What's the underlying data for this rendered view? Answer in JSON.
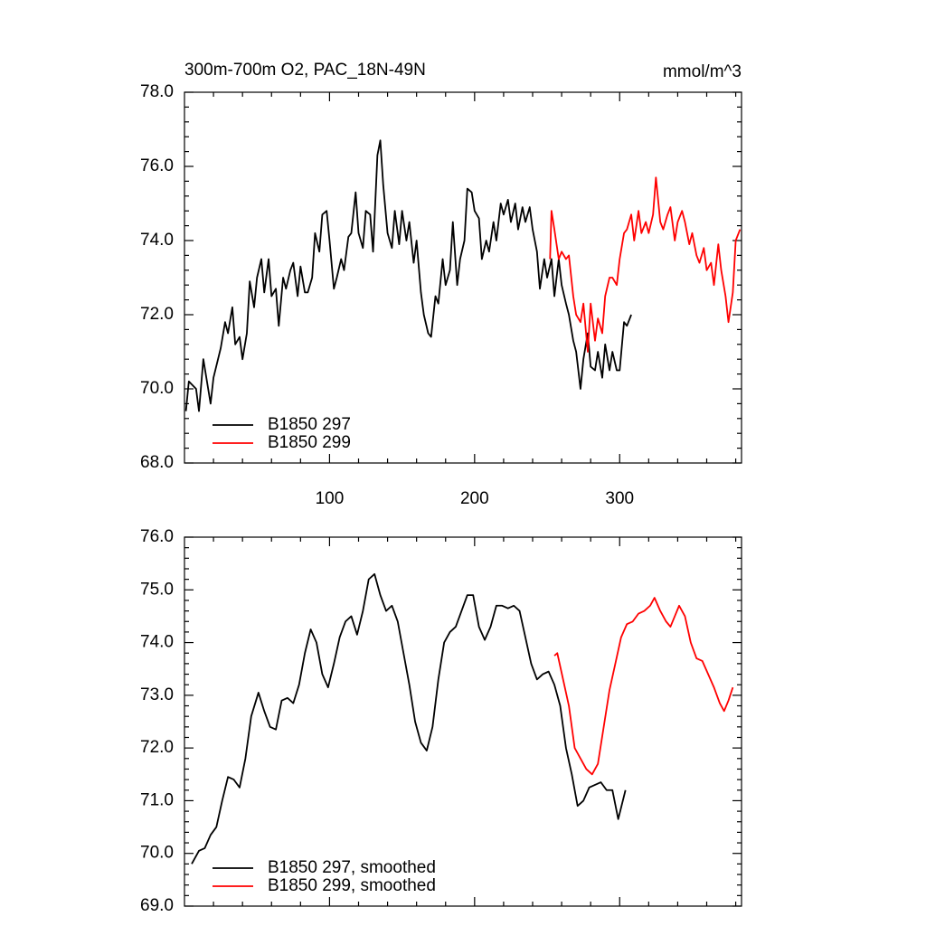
{
  "chart_data": [
    {
      "type": "line",
      "title": "300m-700m O2, PAC_18N-49N",
      "units_label": "mmol/m^3",
      "xlim": [
        0,
        384
      ],
      "xticks": [
        100,
        200,
        300
      ],
      "ylim": [
        68,
        78
      ],
      "yticks": [
        {
          "value": 68,
          "label": "68.0"
        },
        {
          "value": 70,
          "label": "70.0"
        },
        {
          "value": 72,
          "label": "72.0"
        },
        {
          "value": 74,
          "label": "74.0"
        },
        {
          "value": 76,
          "label": "76.0"
        },
        {
          "value": 78,
          "label": "78.0"
        }
      ],
      "legend": "lower-left",
      "series": [
        {
          "name": "B1850 297",
          "color": "#000000",
          "x": [
            1,
            3,
            8,
            10,
            13,
            18,
            20,
            25,
            28,
            30,
            33,
            35,
            38,
            40,
            43,
            45,
            48,
            50,
            53,
            55,
            58,
            60,
            63,
            65,
            68,
            70,
            73,
            75,
            78,
            80,
            83,
            85,
            88,
            90,
            93,
            95,
            98,
            100,
            103,
            105,
            108,
            110,
            113,
            115,
            118,
            120,
            123,
            125,
            128,
            130,
            133,
            135,
            137,
            140,
            143,
            145,
            148,
            150,
            153,
            155,
            158,
            160,
            163,
            165,
            168,
            170,
            173,
            175,
            178,
            180,
            183,
            185,
            188,
            190,
            193,
            195,
            198,
            200,
            203,
            205,
            208,
            210,
            213,
            215,
            218,
            220,
            223,
            225,
            228,
            230,
            233,
            235,
            238,
            240,
            243,
            245,
            248,
            250,
            253,
            255,
            258,
            260,
            263,
            265,
            268,
            270,
            273,
            275,
            278,
            280,
            283,
            285,
            288,
            290,
            293,
            295,
            298,
            300,
            303,
            305,
            308
          ],
          "values": [
            69.4,
            70.2,
            70.0,
            69.4,
            70.8,
            69.6,
            70.3,
            71.1,
            71.8,
            71.5,
            72.2,
            71.2,
            71.4,
            70.8,
            71.5,
            72.9,
            72.2,
            73.0,
            73.5,
            72.6,
            73.5,
            72.5,
            72.7,
            71.7,
            73.0,
            72.7,
            73.2,
            73.4,
            72.5,
            73.3,
            72.6,
            72.6,
            73.0,
            74.2,
            73.7,
            74.7,
            74.8,
            74.0,
            72.7,
            73.0,
            73.5,
            73.2,
            74.1,
            74.2,
            75.3,
            74.2,
            73.8,
            74.8,
            74.7,
            73.7,
            76.3,
            76.7,
            75.5,
            74.2,
            73.8,
            74.8,
            73.9,
            74.8,
            74.0,
            74.5,
            73.4,
            74.0,
            72.6,
            72.0,
            71.5,
            71.4,
            72.5,
            72.3,
            73.5,
            72.8,
            73.2,
            74.5,
            72.8,
            73.5,
            74.0,
            75.4,
            75.3,
            74.8,
            74.6,
            73.5,
            74.0,
            73.7,
            74.5,
            74.0,
            75.0,
            74.7,
            75.1,
            74.5,
            75.0,
            74.3,
            74.9,
            74.5,
            74.9,
            74.3,
            73.7,
            72.7,
            73.5,
            73.0,
            73.5,
            72.5,
            73.5,
            72.8,
            72.3,
            72.0,
            71.3,
            71.0,
            70.0,
            70.8,
            71.5,
            70.6,
            70.5,
            71.0,
            70.3,
            71.2,
            70.5,
            71.0,
            70.5,
            70.5,
            71.8,
            71.7,
            72.0
          ]
        },
        {
          "name": "B1850 299",
          "color": "#ff0000",
          "x": [
            252,
            253,
            255,
            258,
            260,
            263,
            265,
            268,
            270,
            273,
            275,
            278,
            280,
            283,
            285,
            288,
            290,
            293,
            295,
            298,
            300,
            303,
            305,
            308,
            310,
            313,
            315,
            318,
            320,
            323,
            325,
            328,
            330,
            333,
            335,
            338,
            340,
            343,
            345,
            348,
            350,
            353,
            355,
            358,
            360,
            363,
            365,
            368,
            370,
            373,
            375,
            378,
            380,
            383
          ],
          "values": [
            73.5,
            74.8,
            74.3,
            73.5,
            73.7,
            73.5,
            73.6,
            72.5,
            72.0,
            71.8,
            72.3,
            71.0,
            72.3,
            71.3,
            71.9,
            71.5,
            72.5,
            73.0,
            73.0,
            72.8,
            73.5,
            74.2,
            74.3,
            74.7,
            74.0,
            74.8,
            74.2,
            74.5,
            74.2,
            74.7,
            75.7,
            74.5,
            74.3,
            74.7,
            74.9,
            74.0,
            74.5,
            74.8,
            74.5,
            73.9,
            74.2,
            73.6,
            73.4,
            73.8,
            73.2,
            73.4,
            72.8,
            73.9,
            73.2,
            72.5,
            71.8,
            72.6,
            74.0,
            74.3
          ]
        }
      ]
    },
    {
      "type": "line",
      "xlim": [
        0,
        384
      ],
      "xticks": [
        100,
        200,
        300
      ],
      "ylim": [
        69,
        76
      ],
      "yticks": [
        {
          "value": 69,
          "label": "69.0"
        },
        {
          "value": 70,
          "label": "70.0"
        },
        {
          "value": 71,
          "label": "71.0"
        },
        {
          "value": 72,
          "label": "72.0"
        },
        {
          "value": 73,
          "label": "73.0"
        },
        {
          "value": 74,
          "label": "74.0"
        },
        {
          "value": 75,
          "label": "75.0"
        },
        {
          "value": 76,
          "label": "76.0"
        }
      ],
      "legend": "lower-left",
      "series": [
        {
          "name": "B1850 297, smoothed",
          "color": "#000000",
          "x": [
            5,
            10,
            14,
            18,
            22,
            26,
            30,
            34,
            38,
            42,
            46,
            51,
            55,
            59,
            63,
            67,
            71,
            75,
            79,
            83,
            87,
            91,
            95,
            99,
            103,
            107,
            111,
            115,
            119,
            123,
            127,
            131,
            135,
            139,
            143,
            147,
            151,
            155,
            159,
            163,
            167,
            171,
            175,
            179,
            183,
            187,
            191,
            195,
            199,
            203,
            207,
            211,
            215,
            219,
            223,
            227,
            231,
            235,
            239,
            243,
            247,
            251,
            255,
            259,
            263,
            267,
            271,
            275,
            279,
            283,
            287,
            291,
            295,
            299,
            304
          ],
          "values": [
            69.8,
            70.05,
            70.1,
            70.35,
            70.5,
            71.0,
            71.45,
            71.4,
            71.25,
            71.8,
            72.6,
            73.05,
            72.7,
            72.4,
            72.35,
            72.9,
            72.95,
            72.85,
            73.2,
            73.8,
            74.25,
            74.0,
            73.4,
            73.15,
            73.6,
            74.1,
            74.4,
            74.5,
            74.15,
            74.6,
            75.2,
            75.3,
            74.9,
            74.6,
            74.7,
            74.4,
            73.8,
            73.2,
            72.5,
            72.1,
            71.95,
            72.4,
            73.3,
            74.0,
            74.2,
            74.3,
            74.6,
            74.9,
            74.9,
            74.3,
            74.05,
            74.3,
            74.7,
            74.7,
            74.65,
            74.7,
            74.6,
            74.1,
            73.6,
            73.3,
            73.4,
            73.45,
            73.2,
            72.8,
            72.0,
            71.5,
            70.9,
            71.0,
            71.25,
            71.3,
            71.35,
            71.2,
            71.2,
            70.65,
            71.2
          ]
        },
        {
          "name": "B1850 299, smoothed",
          "color": "#ff0000",
          "x": [
            255,
            257,
            261,
            265,
            269,
            273,
            277,
            281,
            285,
            289,
            293,
            297,
            301,
            305,
            309,
            313,
            317,
            321,
            324,
            328,
            332,
            335,
            338,
            341,
            345,
            349,
            353,
            357,
            361,
            365,
            369,
            372,
            375,
            378
          ],
          "values": [
            73.75,
            73.8,
            73.3,
            72.8,
            72.0,
            71.8,
            71.6,
            71.5,
            71.7,
            72.4,
            73.1,
            73.6,
            74.1,
            74.35,
            74.4,
            74.55,
            74.6,
            74.7,
            74.85,
            74.6,
            74.4,
            74.3,
            74.5,
            74.7,
            74.5,
            74.0,
            73.7,
            73.65,
            73.4,
            73.15,
            72.85,
            72.7,
            72.9,
            73.15
          ]
        }
      ]
    }
  ]
}
